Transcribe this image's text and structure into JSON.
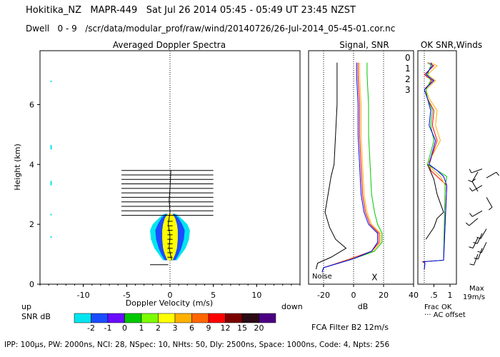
{
  "header": {
    "line1": "Hokitika_NZ   MAPR-449   Sat Jul 26 2014 05:45 - 05:49 UT 23:45 NZST",
    "line2": "Dwell   0 - 9   /scr/data/modular_prof/raw/wind/20140726/26-Jul-2014_05-45-01.cor.nc"
  },
  "footer": {
    "params": "IPP: 100μs,  PW: 2000ns,  NCI: 28,  NSpec: 10, NHts: 50,  Dly: 2500ns,  Space: 1000ns,  Code: 4,  Npts: 256",
    "fca": "FCA Filter B2 12m/s"
  },
  "colors": {
    "snr_scale": [
      "#00e5ee",
      "#1c4cff",
      "#6a0dff",
      "#00c800",
      "#7cfc00",
      "#ffff00",
      "#ffb000",
      "#ff6600",
      "#ff0000",
      "#7a0000",
      "#2a0a14",
      "#4b0082"
    ],
    "beam": [
      "#ff0000",
      "#ffb000",
      "#00c800",
      "#0000ff"
    ]
  },
  "chart_data": [
    {
      "type": "heatmap",
      "title": "Averaged Doppler Spectra",
      "xlabel": "Doppler Velocity (m/s)",
      "ylabel": "Height (km)",
      "xlim": [
        -15,
        15
      ],
      "ylim": [
        0,
        7.8
      ],
      "x_ticks": [
        -10,
        -5,
        0,
        5,
        10
      ],
      "y_ticks": [
        0,
        2,
        4,
        6
      ],
      "direction_labels": {
        "left": "up",
        "right": "down"
      },
      "colorbar": {
        "label": "SNR dB",
        "ticks": [
          "-2",
          "-1",
          "0",
          "1",
          "2",
          "3",
          "6",
          "9",
          "12",
          "15",
          "20"
        ]
      },
      "core_profile": {
        "heights": [
          0.8,
          1.0,
          1.2,
          1.5,
          1.8,
          2.0,
          2.2,
          2.35
        ],
        "cyan_half_width": [
          0.8,
          1.3,
          1.8,
          2.2,
          2.3,
          2.0,
          1.3,
          0.7
        ],
        "blue_half_width": [
          0.6,
          1.0,
          1.3,
          1.6,
          1.7,
          1.4,
          1.0,
          0.5
        ],
        "yellow_half_width": [
          0.3,
          0.6,
          0.8,
          0.9,
          0.9,
          0.8,
          0.6,
          0.3
        ]
      },
      "spread_bars": {
        "heights": [
          2.3,
          2.45,
          2.6,
          2.75,
          2.9,
          3.05,
          3.2,
          3.35,
          3.5,
          3.65,
          3.8
        ],
        "center": -0.3,
        "half_width": 5.3
      },
      "small_bars": {
        "heights": [
          0.9,
          1.05,
          1.2,
          1.35,
          1.5,
          1.65,
          1.8,
          1.95,
          2.1
        ],
        "half_width": 0.3
      },
      "noise_bar": {
        "height": 0.65,
        "x1": -2.3,
        "x2": -0.2
      },
      "edge_blobs": [
        [
          6.75,
          6.8
        ],
        [
          4.5,
          4.65
        ],
        [
          3.3,
          3.45
        ],
        [
          2.3,
          2.35
        ],
        [
          1.55,
          1.6
        ]
      ]
    },
    {
      "type": "line",
      "title": "Signal, SNR",
      "xlabel": "dB",
      "xlim": [
        -30,
        40
      ],
      "ylim": [
        0,
        7.8
      ],
      "x_ticks": [
        -20,
        0,
        20,
        40
      ],
      "dotted_verticals": [
        -20,
        0,
        20
      ],
      "noise_label": "Noise",
      "marker_x": 14,
      "marker_label": "X",
      "series": [
        {
          "x": [
            -21,
            -20,
            -2,
            12,
            17,
            17,
            11,
            8,
            6,
            5,
            4,
            4,
            3,
            3
          ],
          "y": [
            0.4,
            0.55,
            0.85,
            1.1,
            1.4,
            1.7,
            2.0,
            2.4,
            3.0,
            4.0,
            5.0,
            6.0,
            7.0,
            7.4
          ]
        },
        {
          "x": [
            -21,
            -20,
            -1,
            13,
            18,
            18,
            12,
            9,
            7,
            6,
            5,
            5,
            4,
            4
          ],
          "y": [
            0.4,
            0.55,
            0.85,
            1.1,
            1.4,
            1.7,
            2.0,
            2.4,
            3.0,
            4.0,
            5.0,
            6.0,
            7.0,
            7.4
          ]
        },
        {
          "x": [
            -21,
            -20,
            0,
            14,
            19,
            19,
            16,
            14,
            12,
            11,
            10,
            10,
            9,
            9
          ],
          "y": [
            0.4,
            0.55,
            0.85,
            1.1,
            1.4,
            1.7,
            2.0,
            2.4,
            3.0,
            4.0,
            5.0,
            6.0,
            7.0,
            7.4
          ]
        },
        {
          "x": [
            -21,
            -20,
            0,
            12,
            16,
            16,
            10,
            7,
            5,
            4,
            3,
            3,
            2,
            2
          ],
          "y": [
            0.4,
            0.55,
            0.85,
            1.1,
            1.4,
            1.7,
            2.0,
            2.4,
            3.0,
            4.0,
            5.0,
            6.0,
            7.0,
            7.4
          ]
        },
        {
          "x": [
            -25,
            -24,
            -15,
            -5,
            -12,
            -16,
            -19,
            -17,
            -15,
            -13,
            -12,
            -11,
            -11,
            -11
          ],
          "y": [
            0.5,
            0.7,
            0.9,
            1.2,
            1.5,
            1.9,
            2.4,
            3.0,
            3.6,
            4.0,
            5.0,
            6.0,
            7.0,
            7.4
          ]
        }
      ]
    },
    {
      "type": "line",
      "title": "OK SNR,Winds",
      "legend": [
        "0",
        "1",
        "2",
        "3"
      ],
      "xlim": [
        0,
        1.2
      ],
      "x_tick_labels": [
        ".5",
        "1"
      ],
      "x_tick_values": [
        0.5,
        1.0
      ],
      "footer_lines": [
        "Frac OK",
        "··· AC offset"
      ],
      "max_label": [
        "Max",
        "19m/s"
      ],
      "series": [
        {
          "x": [
            0.2,
            0.22,
            0.15,
            0.8,
            0.9,
            0.6,
            0.4,
            0.35,
            0.6,
            0.45,
            0.5,
            0.3,
            0.2,
            0.45,
            0.2,
            0.5,
            0.3
          ],
          "y": [
            0.5,
            0.7,
            0.75,
            0.8,
            3.3,
            3.6,
            3.8,
            4.0,
            4.8,
            5.3,
            5.8,
            6.2,
            6.5,
            6.8,
            7.0,
            7.3,
            7.4
          ]
        },
        {
          "x": [
            0.2,
            0.22,
            0.18,
            0.8,
            0.85,
            0.7,
            0.5,
            0.3,
            0.7,
            0.55,
            0.6,
            0.35,
            0.25,
            0.55,
            0.3,
            0.6,
            0.4
          ],
          "y": [
            0.5,
            0.7,
            0.75,
            0.8,
            3.3,
            3.6,
            3.8,
            4.0,
            4.8,
            5.3,
            5.8,
            6.2,
            6.5,
            6.8,
            7.0,
            7.3,
            7.4
          ]
        },
        {
          "x": [
            0.2,
            0.22,
            0.18,
            0.8,
            0.85,
            0.9,
            0.6,
            0.3,
            0.5,
            0.4,
            0.45,
            0.3,
            0.25,
            0.4,
            0.3,
            0.4,
            0.35
          ],
          "y": [
            0.5,
            0.7,
            0.75,
            0.8,
            3.3,
            3.6,
            3.8,
            4.0,
            4.8,
            5.3,
            5.8,
            6.2,
            6.5,
            6.8,
            7.0,
            7.3,
            7.4
          ]
        },
        {
          "x": [
            0.2,
            0.22,
            0.18,
            0.8,
            0.9,
            0.8,
            0.6,
            0.35,
            0.55,
            0.35,
            0.4,
            0.3,
            0.2,
            0.5,
            0.25,
            0.45,
            0.4
          ],
          "y": [
            0.5,
            0.7,
            0.75,
            0.8,
            3.3,
            3.6,
            3.8,
            4.0,
            4.8,
            5.3,
            5.8,
            6.2,
            6.5,
            6.8,
            7.0,
            7.3,
            7.4
          ]
        },
        {
          "x": [
            0.25,
            0.5,
            0.6,
            0.8,
            0.7,
            0.6,
            0.5,
            0.3
          ],
          "y": [
            1.5,
            1.9,
            2.2,
            2.4,
            2.7,
            3.0,
            3.5,
            4.0
          ]
        }
      ]
    },
    {
      "type": "scatter",
      "title": "",
      "wind_barbs": [
        {
          "height": 1.0,
          "from_dir": 200
        },
        {
          "height": 1.2,
          "from_dir": 200
        },
        {
          "height": 1.4,
          "from_dir": 205
        },
        {
          "height": 1.55,
          "from_dir": 205
        },
        {
          "height": 1.7,
          "from_dir": 205
        },
        {
          "height": 1.85,
          "from_dir": 210
        },
        {
          "height": 2.2,
          "from_dir": 230
        },
        {
          "height": 2.45,
          "from_dir": 240
        },
        {
          "height": 2.9,
          "from_dir": 150
        },
        {
          "height": 3.1,
          "from_dir": 330
        },
        {
          "height": 3.3,
          "from_dir": 240
        },
        {
          "height": 3.55,
          "from_dir": 60
        },
        {
          "height": 3.75,
          "from_dir": 210
        },
        {
          "height": 3.85,
          "from_dir": 250
        }
      ]
    }
  ]
}
